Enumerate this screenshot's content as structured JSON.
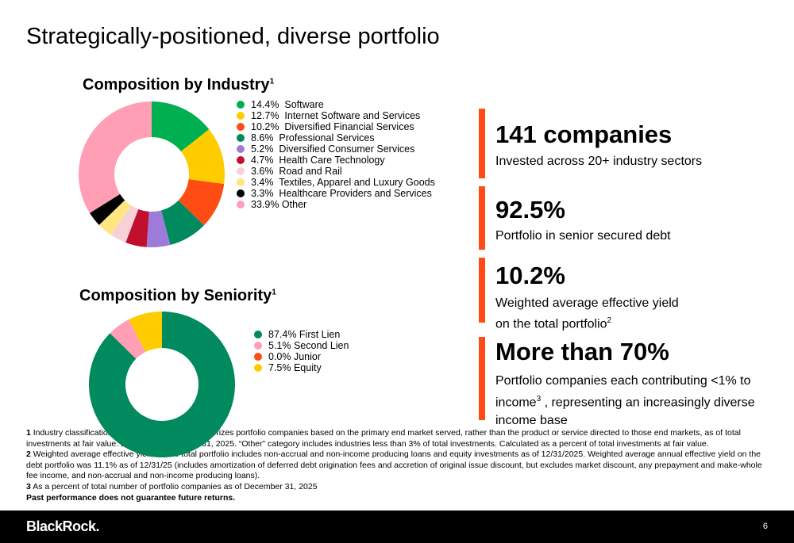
{
  "title": "Strategically-positioned, diverse portfolio",
  "industry": {
    "heading": "Composition by Industry",
    "sup": "1"
  },
  "seniority": {
    "heading": "Composition by Seniority",
    "sup": "1"
  },
  "chart_data": [
    {
      "type": "pie",
      "donut": true,
      "title": "Composition by Industry",
      "legend": "right",
      "categories": [
        "Software",
        "Internet Software and Services",
        "Diversified Financial Services",
        "Professional Services",
        "Diversified Consumer Services",
        "Health Care Technology",
        "Road and Rail",
        "Textiles, Apparel and Luxury Goods",
        "Healthcare Providers and Services",
        "Other"
      ],
      "values": [
        14.4,
        12.7,
        10.2,
        8.6,
        5.2,
        4.7,
        3.6,
        3.4,
        3.3,
        33.9
      ],
      "labels": [
        "14.4%  Software",
        "12.7%  Internet Software and Services",
        "10.2%  Diversified Financial Services",
        "8.6%  Professional Services",
        "5.2%  Diversified Consumer Services",
        "4.7%  Health Care Technology",
        "3.6%  Road and Rail",
        "3.4%  Textiles, Apparel and Luxury Goods",
        "3.3%  Healthcare Providers and Services",
        "33.9% Other"
      ],
      "colors": [
        "#00B050",
        "#FFCC00",
        "#FF4B14",
        "#008A5E",
        "#9E7BDB",
        "#C0102E",
        "#F8D0D8",
        "#FFE680",
        "#000000",
        "#FF9EB5"
      ]
    },
    {
      "type": "pie",
      "donut": true,
      "title": "Composition by Seniority",
      "legend": "right",
      "categories": [
        "First Lien",
        "Second Lien",
        "Junior",
        "Equity"
      ],
      "values": [
        87.4,
        5.1,
        0.0,
        7.5
      ],
      "labels": [
        "87.4% First Lien",
        "5.1% Second Lien",
        "0.0% Junior",
        "7.5% Equity"
      ],
      "colors": [
        "#008A5E",
        "#FF9EB5",
        "#FF4B14",
        "#FFCC00"
      ]
    }
  ],
  "stats": [
    {
      "big": "141 companies",
      "sub": "Invested across 20+ industry sectors"
    },
    {
      "big": "92.5%",
      "sub": "Portfolio in senior secured debt"
    },
    {
      "big": "10.2%",
      "sub1": "Weighted average effective yield",
      "sub2": "on the total portfolio",
      "sup": "2"
    },
    {
      "big": "More than 70%",
      "sub1": "Portfolio companies each contributing <1% to",
      "sub2a": "income",
      "sup": "3",
      "sub2b": " , representing an increasingly  diverse",
      "sub3": "income base"
    }
  ],
  "footnotes": {
    "n1": "1",
    "f1a": "Industry classification s",
    "f1b": "egorizes portfolio companies based on the primary end market served, rather than the product or service directed to those end markets, as of total investments at fair value.  Data as of December 31, 2025. “Other” category includes industries less than 3% of total investments. Calculated as a percent of total investments at fair value.",
    "n2": "2",
    "f2": "Weighted average effective yield on the total portfolio includes non-accrual and non-income producing loans and equity investments as of 12/31/2025. Weighted average annual effective yield  on the debt portfolio  was 11.1% as of 12/31/25 (includes amortization of deferred debt origination fees and accretion of original issue discount, but excludes market discount, any prepayment and make-whole fee income, and non-accrual and non-income producing loans).",
    "n3": "3",
    "f3": "As a percent of total number of portfolio companies as of December 31, 2025",
    "disclaimer": "Past performance does not guarantee future returns."
  },
  "footer": {
    "logo": "BlackRock.",
    "page": "6"
  }
}
